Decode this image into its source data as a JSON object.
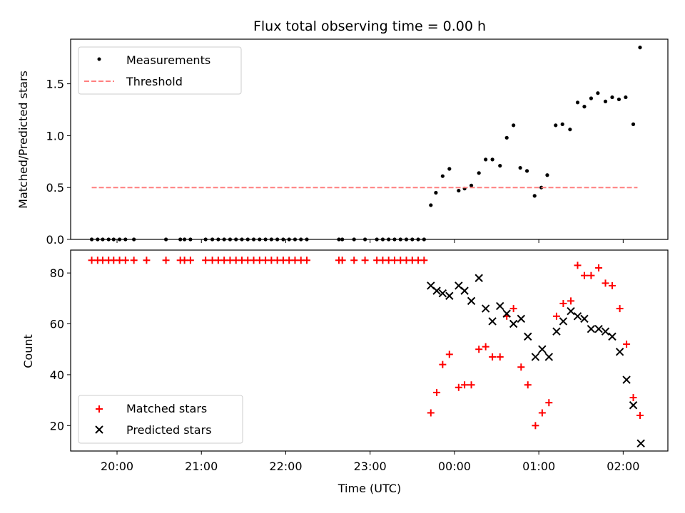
{
  "chart_data": {
    "title": "Flux total observing time = 0.00 h",
    "xlabel": "Time (UTC)",
    "x_ticks": [
      "20:00",
      "21:00",
      "22:00",
      "23:00",
      "00:00",
      "01:00",
      "02:00"
    ],
    "x_tick_values": [
      20.0,
      21.0,
      22.0,
      23.0,
      24.0,
      25.0,
      26.0
    ],
    "xlim": [
      19.45,
      26.53
    ],
    "panels": [
      {
        "type": "scatter",
        "ylabel": "Matched/Predicted stars",
        "ylim": [
          0.0,
          1.93
        ],
        "y_ticks": [
          0.0,
          0.5,
          1.0,
          1.5
        ],
        "y_tick_labels": [
          "0.0",
          "0.5",
          "1.0",
          "1.5"
        ],
        "legend": {
          "position": "top-left",
          "entries": [
            "Measurements",
            "Threshold"
          ]
        },
        "series": [
          {
            "name": "Measurements",
            "marker": "dot",
            "color": "#000000",
            "points": [
              [
                19.7,
                0
              ],
              [
                19.77,
                0
              ],
              [
                19.83,
                0
              ],
              [
                19.9,
                0
              ],
              [
                19.96,
                0
              ],
              [
                20.03,
                0
              ],
              [
                20.1,
                0
              ],
              [
                20.2,
                0
              ],
              [
                20.58,
                0
              ],
              [
                20.75,
                0
              ],
              [
                20.8,
                0
              ],
              [
                20.87,
                0
              ],
              [
                21.05,
                0
              ],
              [
                21.13,
                0
              ],
              [
                21.2,
                0
              ],
              [
                21.27,
                0
              ],
              [
                21.34,
                0
              ],
              [
                21.41,
                0
              ],
              [
                21.48,
                0
              ],
              [
                21.55,
                0
              ],
              [
                21.62,
                0
              ],
              [
                21.69,
                0
              ],
              [
                21.76,
                0
              ],
              [
                21.83,
                0
              ],
              [
                21.9,
                0
              ],
              [
                21.97,
                0
              ],
              [
                22.04,
                0
              ],
              [
                22.11,
                0
              ],
              [
                22.18,
                0
              ],
              [
                22.25,
                0
              ],
              [
                22.63,
                0
              ],
              [
                22.67,
                0
              ],
              [
                22.81,
                0
              ],
              [
                22.94,
                0
              ],
              [
                23.08,
                0
              ],
              [
                23.15,
                0
              ],
              [
                23.22,
                0
              ],
              [
                23.29,
                0
              ],
              [
                23.36,
                0
              ],
              [
                23.43,
                0
              ],
              [
                23.5,
                0
              ],
              [
                23.57,
                0
              ],
              [
                23.64,
                0
              ],
              [
                23.72,
                0.33
              ],
              [
                23.78,
                0.45
              ],
              [
                23.86,
                0.61
              ],
              [
                23.94,
                0.68
              ],
              [
                24.05,
                0.47
              ],
              [
                24.12,
                0.49
              ],
              [
                24.2,
                0.52
              ],
              [
                24.29,
                0.64
              ],
              [
                24.37,
                0.77
              ],
              [
                24.45,
                0.77
              ],
              [
                24.54,
                0.71
              ],
              [
                24.62,
                0.98
              ],
              [
                24.7,
                1.1
              ],
              [
                24.78,
                0.69
              ],
              [
                24.86,
                0.66
              ],
              [
                24.95,
                0.42
              ],
              [
                25.03,
                0.5
              ],
              [
                25.1,
                0.62
              ],
              [
                25.2,
                1.1
              ],
              [
                25.28,
                1.11
              ],
              [
                25.37,
                1.06
              ],
              [
                25.46,
                1.32
              ],
              [
                25.54,
                1.28
              ],
              [
                25.62,
                1.36
              ],
              [
                25.7,
                1.41
              ],
              [
                25.79,
                1.33
              ],
              [
                25.87,
                1.37
              ],
              [
                25.95,
                1.35
              ],
              [
                26.03,
                1.37
              ],
              [
                26.12,
                1.11
              ],
              [
                26.2,
                1.85
              ]
            ]
          },
          {
            "name": "Threshold",
            "marker": "dashed-line",
            "color": "#ff7f7f",
            "points": [
              [
                19.7,
                0.5
              ],
              [
                26.17,
                0.5
              ]
            ]
          }
        ]
      },
      {
        "type": "scatter",
        "ylabel": "Count",
        "ylim": [
          10,
          89
        ],
        "y_ticks": [
          20,
          40,
          60,
          80
        ],
        "y_tick_labels": [
          "20",
          "40",
          "60",
          "80"
        ],
        "legend": {
          "position": "bottom-left",
          "entries": [
            "Matched stars",
            "Predicted stars"
          ]
        },
        "series": [
          {
            "name": "Matched stars",
            "marker": "plus",
            "color": "#ff0000",
            "points": [
              [
                19.7,
                85
              ],
              [
                19.77,
                85
              ],
              [
                19.83,
                85
              ],
              [
                19.9,
                85
              ],
              [
                19.96,
                85
              ],
              [
                20.03,
                85
              ],
              [
                20.1,
                85
              ],
              [
                20.2,
                85
              ],
              [
                20.35,
                85
              ],
              [
                20.58,
                85
              ],
              [
                20.75,
                85
              ],
              [
                20.8,
                85
              ],
              [
                20.87,
                85
              ],
              [
                21.05,
                85
              ],
              [
                21.13,
                85
              ],
              [
                21.2,
                85
              ],
              [
                21.27,
                85
              ],
              [
                21.34,
                85
              ],
              [
                21.41,
                85
              ],
              [
                21.48,
                85
              ],
              [
                21.55,
                85
              ],
              [
                21.62,
                85
              ],
              [
                21.69,
                85
              ],
              [
                21.76,
                85
              ],
              [
                21.83,
                85
              ],
              [
                21.9,
                85
              ],
              [
                21.97,
                85
              ],
              [
                22.04,
                85
              ],
              [
                22.11,
                85
              ],
              [
                22.18,
                85
              ],
              [
                22.25,
                85
              ],
              [
                22.63,
                85
              ],
              [
                22.67,
                85
              ],
              [
                22.81,
                85
              ],
              [
                22.94,
                85
              ],
              [
                23.08,
                85
              ],
              [
                23.15,
                85
              ],
              [
                23.22,
                85
              ],
              [
                23.29,
                85
              ],
              [
                23.36,
                85
              ],
              [
                23.43,
                85
              ],
              [
                23.5,
                85
              ],
              [
                23.57,
                85
              ],
              [
                23.64,
                85
              ],
              [
                23.72,
                25
              ],
              [
                23.79,
                33
              ],
              [
                23.86,
                44
              ],
              [
                23.94,
                48
              ],
              [
                24.05,
                35
              ],
              [
                24.12,
                36
              ],
              [
                24.2,
                36
              ],
              [
                24.29,
                50
              ],
              [
                24.37,
                51
              ],
              [
                24.45,
                47
              ],
              [
                24.54,
                47
              ],
              [
                24.62,
                63
              ],
              [
                24.7,
                66
              ],
              [
                24.79,
                43
              ],
              [
                24.87,
                36
              ],
              [
                24.96,
                20
              ],
              [
                25.04,
                25
              ],
              [
                25.12,
                29
              ],
              [
                25.21,
                63
              ],
              [
                25.29,
                68
              ],
              [
                25.38,
                69
              ],
              [
                25.46,
                83
              ],
              [
                25.54,
                79
              ],
              [
                25.62,
                79
              ],
              [
                25.71,
                82
              ],
              [
                25.79,
                76
              ],
              [
                25.87,
                75
              ],
              [
                25.96,
                66
              ],
              [
                26.04,
                52
              ],
              [
                26.12,
                31
              ],
              [
                26.2,
                24
              ]
            ]
          },
          {
            "name": "Predicted stars",
            "marker": "x",
            "color": "#000000",
            "points": [
              [
                23.72,
                75
              ],
              [
                23.79,
                73
              ],
              [
                23.86,
                72
              ],
              [
                23.94,
                71
              ],
              [
                24.05,
                75
              ],
              [
                24.12,
                73
              ],
              [
                24.2,
                69
              ],
              [
                24.29,
                78
              ],
              [
                24.37,
                66
              ],
              [
                24.45,
                61
              ],
              [
                24.54,
                67
              ],
              [
                24.62,
                64
              ],
              [
                24.7,
                60
              ],
              [
                24.79,
                62
              ],
              [
                24.87,
                55
              ],
              [
                24.96,
                47
              ],
              [
                25.04,
                50
              ],
              [
                25.12,
                47
              ],
              [
                25.21,
                57
              ],
              [
                25.29,
                61
              ],
              [
                25.38,
                65
              ],
              [
                25.46,
                63
              ],
              [
                25.54,
                62
              ],
              [
                25.62,
                58
              ],
              [
                25.71,
                58
              ],
              [
                25.79,
                57
              ],
              [
                25.87,
                55
              ],
              [
                25.96,
                49
              ],
              [
                26.04,
                38
              ],
              [
                26.12,
                28
              ],
              [
                26.21,
                13
              ]
            ]
          }
        ]
      }
    ]
  }
}
